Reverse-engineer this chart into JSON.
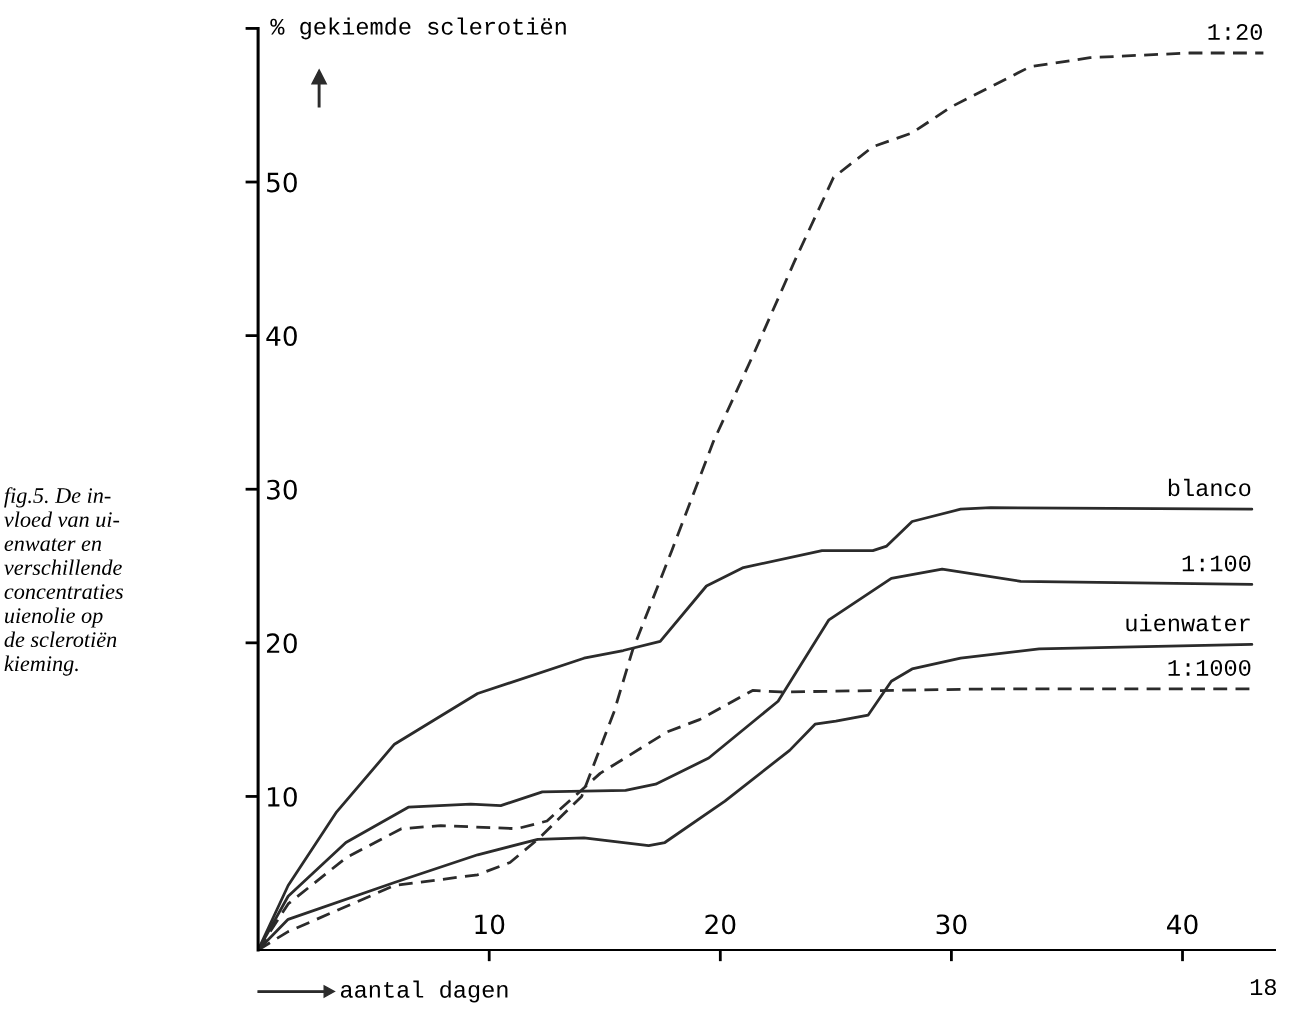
{
  "chart_data": {
    "type": "line",
    "ylabel": "% gekiemde sclerotiën",
    "xlabel": "aantal dagen",
    "annotations": [
      "fig.5. De in-\nvloed van ui-\nenwater en\nverschillende\nconcentraties\nuienolie op\nde sclerotiën\nkieming.",
      "18"
    ],
    "xlim": [
      0,
      44
    ],
    "ylim": [
      0,
      60
    ],
    "xticks": [
      10,
      20,
      30,
      40
    ],
    "yticks": [
      10,
      20,
      30,
      40,
      50,
      {
        "value": 60,
        "label": null
      }
    ],
    "grid": false,
    "legend": false,
    "marker": "none",
    "series": [
      {
        "name": "1:20",
        "color": "#2b2b2b",
        "line_style": "dashed",
        "x": [
          0,
          1.3,
          5.9,
          9.5,
          10.9,
          12.1,
          14.0,
          15.4,
          16.2,
          17.9,
          19.7,
          21.5,
          23.2,
          24.9,
          26.6,
          28.3,
          30.0,
          31.7,
          33.4,
          36.0,
          40.3,
          43.5
        ],
        "values": [
          0,
          1.2,
          4.2,
          4.9,
          5.7,
          7.2,
          10.0,
          15.5,
          19.5,
          26.0,
          33.1,
          39.0,
          44.8,
          50.3,
          52.3,
          53.2,
          54.9,
          56.2,
          57.5,
          58.1,
          58.4,
          58.4
        ]
      },
      {
        "name": "blanco",
        "color": "#2b2b2b",
        "line_style": "solid",
        "x": [
          0,
          1.3,
          3.4,
          5.9,
          9.5,
          14.1,
          15.8,
          17.4,
          19.4,
          21.0,
          24.4,
          26.6,
          27.2,
          28.3,
          30.4,
          31.7,
          43.0
        ],
        "values": [
          0,
          4.2,
          9.0,
          13.4,
          16.7,
          19.0,
          19.5,
          20.1,
          23.7,
          24.9,
          26.0,
          26.0,
          26.3,
          27.9,
          28.7,
          28.8,
          28.7
        ]
      },
      {
        "name": "1:100",
        "color": "#2b2b2b",
        "line_style": "solid",
        "x": [
          0,
          1.3,
          3.8,
          6.5,
          9.2,
          10.5,
          12.3,
          15.9,
          17.2,
          19.5,
          22.5,
          24.7,
          27.4,
          29.6,
          33.0,
          43.0
        ],
        "values": [
          0,
          3.5,
          7.0,
          9.3,
          9.5,
          9.4,
          10.3,
          10.4,
          10.8,
          12.5,
          16.2,
          21.5,
          24.2,
          24.8,
          24.0,
          23.8
        ]
      },
      {
        "name": "uienwater",
        "color": "#2b2b2b",
        "line_style": "solid",
        "x": [
          0,
          1.3,
          5.9,
          9.5,
          12.1,
          14.1,
          16.9,
          17.6,
          20.2,
          23.0,
          24.1,
          25.0,
          26.4,
          27.4,
          28.3,
          30.4,
          33.8,
          43.0
        ],
        "values": [
          0,
          2.0,
          4.4,
          6.2,
          7.2,
          7.3,
          6.8,
          7.0,
          9.7,
          13.0,
          14.7,
          14.9,
          15.3,
          17.5,
          18.3,
          19.0,
          19.6,
          19.9
        ]
      },
      {
        "name": "1:1000",
        "color": "#2b2b2b",
        "line_style": "dashed",
        "x": [
          0,
          1.3,
          3.8,
          6.2,
          7.9,
          11.2,
          12.5,
          14.8,
          17.7,
          19.1,
          21.4,
          22.6,
          31.7,
          43.0
        ],
        "values": [
          0,
          3.0,
          6.0,
          7.9,
          8.1,
          7.9,
          8.4,
          11.5,
          14.2,
          15.0,
          16.9,
          16.8,
          17.0,
          17.0
        ]
      }
    ]
  }
}
